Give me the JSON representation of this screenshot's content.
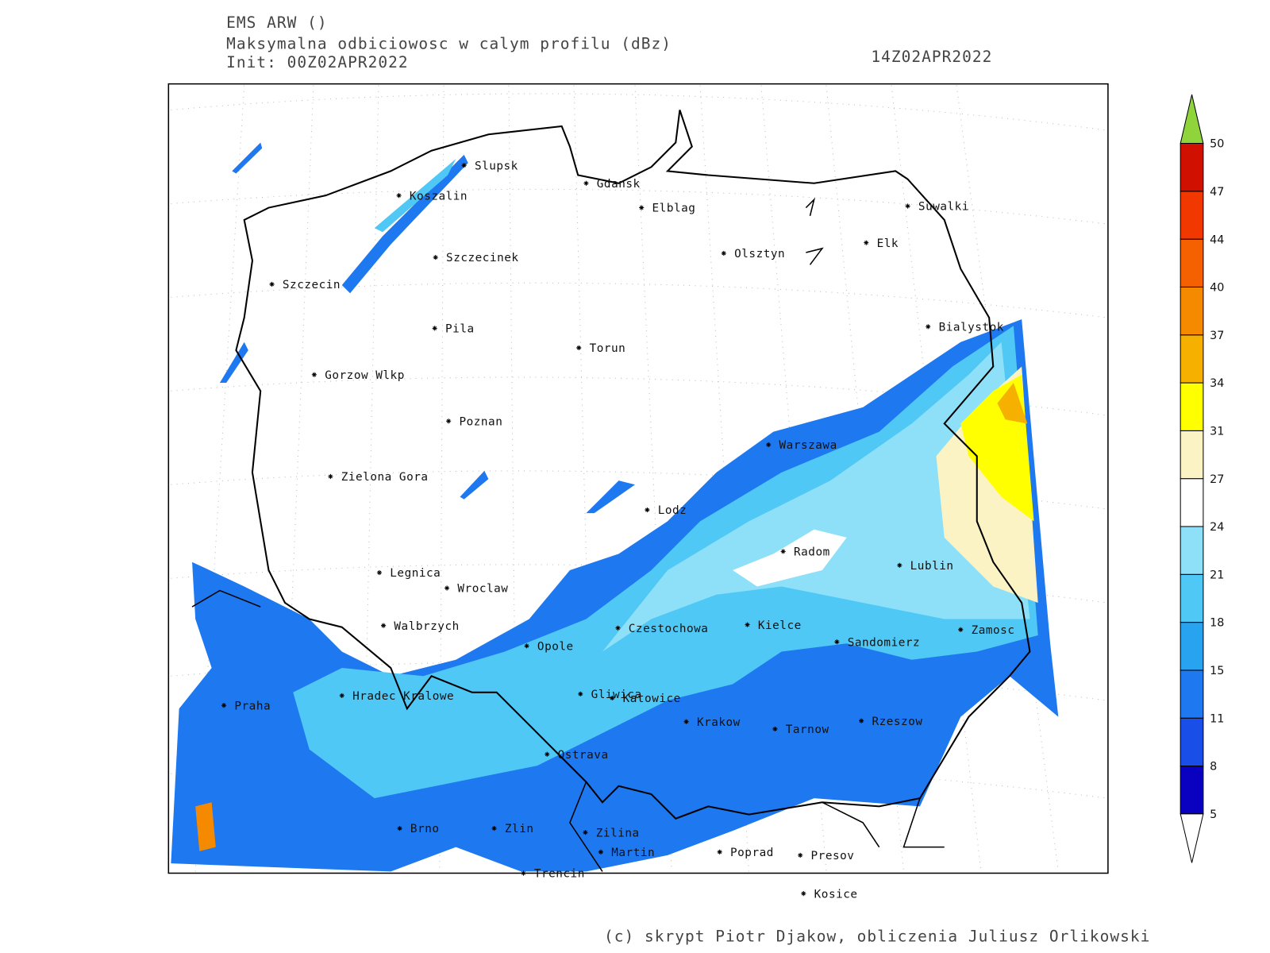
{
  "header": {
    "model": "EMS ARW ()",
    "field": "Maksymalna odbiciowosc w calym profilu (dBz)",
    "init": "Init: 00Z02APR2022",
    "valid": "14Z02APR2022"
  },
  "cities": [
    "Slupsk",
    "Koszalin",
    "Gdansk",
    "Elblag",
    "Suwalki",
    "Elk",
    "Olsztyn",
    "Szczecinek",
    "Szczecin",
    "Bialystok",
    "Pila",
    "Torun",
    "Gorzow Wlkp",
    "Poznan",
    "Warszawa",
    "Zielona Gora",
    "Lodz",
    "Radom",
    "Lublin",
    "Legnica",
    "Wroclaw",
    "Czestochowa",
    "Kielce",
    "Walbrzych",
    "Zamosc",
    "Sandomierz",
    "Opole",
    "Praha",
    "Hradec Kralowe",
    "Gliwica",
    "Katowice",
    "Krakow",
    "Tarnow",
    "Rzeszow",
    "Ostrava",
    "Brno",
    "Zlin",
    "Zilina",
    "Martin",
    "Poprad",
    "Presov",
    "Trencin",
    "Kosice"
  ],
  "colorbar": {
    "ticks": [
      5,
      8,
      11,
      15,
      18,
      21,
      24,
      27,
      31,
      34,
      37,
      40,
      44,
      47,
      50
    ],
    "colors": [
      "#0a00c0",
      "#1a4ee8",
      "#1e78f0",
      "#27a3f0",
      "#50c8f5",
      "#8de0f8",
      "#ffffff",
      "#fbf3c4",
      "#ffff00",
      "#f5b000",
      "#f58a00",
      "#f56000",
      "#f03800",
      "#d01000"
    ],
    "over_color": "#8fd43a",
    "under_color": "#ffffff"
  },
  "footer": "(c) skrypt Piotr Djakow, obliczenia Juliusz Orlikowski"
}
